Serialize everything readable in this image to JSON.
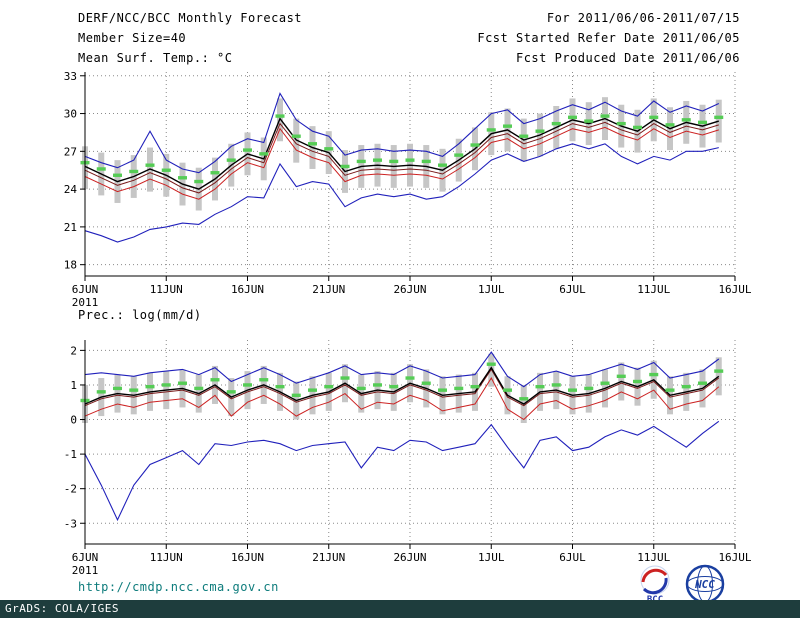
{
  "header": {
    "left": [
      "DERF/NCC/BCC Monthly Forecast",
      "Member Size=40",
      "Mean Surf. Temp.: °C"
    ],
    "right": [
      "For 2011/06/06-2011/07/15",
      "Fcst Started Refer Date 2011/06/05",
      "Fcst Produced Date 2011/06/06"
    ]
  },
  "panel2_label": "Prec.: log(mm/d)",
  "footer": {
    "url": "http://cmdp.ncc.cma.gov.cn",
    "grads": "GrADS: COLA/IGES"
  },
  "logos": {
    "bcc": "BCC",
    "ncc": "NCC"
  },
  "colors": {
    "url_teal": "#0e7c7c",
    "strip_bg": "#1e3d3d",
    "ensemble_blue": "#2020bb",
    "control_red": "#cc2222",
    "median_maroon": "#7a1a1a",
    "mean_black": "#000000",
    "clim_green": "#55cc55",
    "spread_gray": "#c6c6c6"
  },
  "chart_data": [
    {
      "type": "line",
      "title": "Mean Surf. Temp.: °C",
      "xlabel": "",
      "ylabel": "°C",
      "xlim": [
        0,
        40
      ],
      "ylim": [
        17.1,
        33.3
      ],
      "y_ticks": [
        18,
        21,
        24,
        27,
        30,
        33
      ],
      "x_ticks": [
        0,
        5,
        10,
        15,
        20,
        25,
        30,
        35,
        40
      ],
      "x_tick_labels": [
        "6JUN",
        "11JUN",
        "16JUN",
        "21JUN",
        "26JUN",
        "1JUL",
        "6JUL",
        "11JUL",
        "16JUL"
      ],
      "x_sub_label": "2011",
      "grid": true,
      "series": [
        {
          "name": "ensemble-max",
          "color": "#2020bb",
          "width": 1.1,
          "values": [
            26.6,
            26.1,
            25.7,
            26.3,
            28.6,
            26.3,
            25.6,
            25.3,
            26.2,
            27.4,
            28.0,
            27.7,
            31.6,
            29.5,
            28.6,
            28.2,
            26.7,
            27.1,
            27.2,
            27.0,
            27.1,
            27.0,
            26.6,
            27.6,
            28.8,
            30.0,
            30.3,
            29.2,
            29.6,
            30.2,
            30.7,
            30.3,
            30.9,
            30.2,
            29.8,
            31.0,
            30.1,
            30.6,
            30.2,
            30.8
          ]
        },
        {
          "name": "ensemble-min",
          "color": "#2020bb",
          "width": 1.1,
          "values": [
            20.7,
            20.3,
            19.8,
            20.2,
            20.8,
            21.0,
            21.3,
            21.2,
            22.0,
            22.6,
            23.4,
            23.3,
            26.0,
            24.2,
            24.6,
            24.4,
            22.6,
            23.3,
            23.6,
            23.4,
            23.6,
            23.2,
            23.4,
            24.2,
            25.2,
            26.3,
            26.8,
            26.2,
            26.6,
            27.2,
            27.6,
            27.2,
            27.6,
            26.6,
            26.0,
            26.6,
            26.3,
            27.0,
            27.0,
            27.3
          ]
        },
        {
          "name": "control-run",
          "color": "#cc2222",
          "width": 1,
          "values": [
            25.0,
            24.4,
            23.8,
            24.2,
            24.8,
            24.3,
            23.6,
            23.2,
            24.0,
            25.2,
            26.1,
            25.7,
            28.8,
            27.1,
            26.5,
            26.1,
            24.6,
            25.1,
            25.2,
            25.1,
            25.2,
            25.1,
            24.8,
            25.6,
            26.5,
            27.7,
            28.0,
            27.2,
            27.6,
            28.2,
            28.8,
            28.5,
            28.9,
            28.3,
            27.9,
            28.8,
            28.1,
            28.6,
            28.3,
            28.7
          ]
        },
        {
          "name": "ensemble-median",
          "color": "#7a1a1a",
          "width": 1,
          "values": [
            25.5,
            24.9,
            24.3,
            24.7,
            25.3,
            24.8,
            24.1,
            23.7,
            24.5,
            25.6,
            26.5,
            26.1,
            29.2,
            27.6,
            27.0,
            26.6,
            25.1,
            25.5,
            25.6,
            25.5,
            25.6,
            25.5,
            25.2,
            26.0,
            26.9,
            28.1,
            28.4,
            27.6,
            28.0,
            28.6,
            29.2,
            28.9,
            29.3,
            28.7,
            28.3,
            29.2,
            28.5,
            29.0,
            28.7,
            29.1
          ]
        },
        {
          "name": "ensemble-mean",
          "color": "#000000",
          "width": 1.4,
          "values": [
            25.8,
            25.2,
            24.6,
            25.0,
            25.6,
            25.1,
            24.4,
            24.0,
            24.8,
            25.9,
            26.8,
            26.4,
            29.6,
            27.9,
            27.3,
            26.9,
            25.4,
            25.8,
            25.9,
            25.8,
            25.9,
            25.8,
            25.5,
            26.3,
            27.2,
            28.4,
            28.7,
            27.9,
            28.3,
            28.9,
            29.5,
            29.2,
            29.6,
            29.0,
            28.6,
            29.5,
            28.8,
            29.3,
            29.0,
            29.4
          ]
        }
      ],
      "bars": {
        "name": "ensemble-spread",
        "color": "#c6c6c6",
        "low": [
          24.0,
          23.5,
          22.9,
          23.3,
          23.8,
          23.4,
          22.7,
          22.3,
          23.1,
          24.2,
          25.1,
          24.7,
          27.8,
          26.1,
          25.6,
          25.2,
          23.7,
          24.1,
          24.2,
          24.1,
          24.2,
          24.1,
          23.8,
          24.6,
          25.5,
          26.7,
          27.0,
          26.2,
          26.6,
          27.2,
          27.8,
          27.5,
          27.9,
          27.3,
          26.9,
          27.8,
          27.1,
          27.6,
          27.3,
          27.7
        ],
        "high": [
          27.4,
          26.9,
          26.3,
          26.7,
          27.3,
          26.8,
          26.1,
          25.7,
          26.5,
          27.6,
          28.5,
          28.1,
          31.2,
          29.6,
          29.0,
          28.6,
          27.1,
          27.5,
          27.6,
          27.5,
          27.6,
          27.5,
          27.2,
          28.0,
          28.9,
          30.1,
          30.4,
          29.6,
          30.0,
          30.6,
          31.2,
          30.9,
          31.3,
          30.7,
          30.3,
          31.2,
          30.5,
          31.0,
          30.7,
          31.1
        ]
      },
      "dashes": {
        "name": "climatology",
        "color": "#55cc55",
        "values": [
          26.1,
          25.6,
          25.1,
          25.4,
          25.9,
          25.5,
          24.9,
          24.6,
          25.3,
          26.3,
          27.1,
          26.8,
          29.8,
          28.2,
          27.6,
          27.2,
          25.8,
          26.2,
          26.3,
          26.2,
          26.3,
          26.2,
          25.9,
          26.7,
          27.5,
          28.7,
          29.0,
          28.2,
          28.6,
          29.2,
          29.7,
          29.4,
          29.8,
          29.2,
          28.9,
          29.7,
          29.1,
          29.5,
          29.3,
          29.7
        ]
      }
    },
    {
      "type": "line",
      "title": "Prec.: log(mm/d)",
      "xlabel": "",
      "ylabel": "log(mm/d)",
      "xlim": [
        0,
        40
      ],
      "ylim": [
        -3.6,
        2.3
      ],
      "y_ticks": [
        -3,
        -2,
        -1,
        0,
        1,
        2
      ],
      "x_ticks": [
        0,
        5,
        10,
        15,
        20,
        25,
        30,
        35,
        40
      ],
      "x_tick_labels": [
        "6JUN",
        "11JUN",
        "16JUN",
        "21JUN",
        "26JUN",
        "1JUL",
        "6JUL",
        "11JUL",
        "16JUL"
      ],
      "x_sub_label": "2011",
      "grid": true,
      "series": [
        {
          "name": "ensemble-max",
          "color": "#2020bb",
          "width": 1.1,
          "values": [
            1.3,
            1.35,
            1.3,
            1.25,
            1.35,
            1.4,
            1.45,
            1.3,
            1.5,
            1.1,
            1.3,
            1.5,
            1.3,
            1.05,
            1.2,
            1.35,
            1.55,
            1.3,
            1.35,
            1.3,
            1.55,
            1.4,
            1.2,
            1.25,
            1.3,
            1.95,
            1.25,
            0.95,
            1.3,
            1.4,
            1.25,
            1.3,
            1.45,
            1.6,
            1.45,
            1.65,
            1.2,
            1.3,
            1.4,
            1.75
          ]
        },
        {
          "name": "ensemble-min",
          "color": "#2020bb",
          "width": 1.1,
          "values": [
            -1.0,
            -1.9,
            -2.9,
            -1.9,
            -1.3,
            -1.1,
            -0.9,
            -1.3,
            -0.7,
            -0.75,
            -0.65,
            -0.6,
            -0.7,
            -0.9,
            -0.75,
            -0.7,
            -0.65,
            -1.4,
            -0.8,
            -0.9,
            -0.6,
            -0.65,
            -0.9,
            -0.8,
            -0.7,
            -0.15,
            -0.8,
            -1.4,
            -0.6,
            -0.5,
            -0.9,
            -0.8,
            -0.5,
            -0.3,
            -0.45,
            -0.2,
            -0.5,
            -0.8,
            -0.4,
            -0.05
          ]
        },
        {
          "name": "control-run",
          "color": "#cc2222",
          "width": 1,
          "values": [
            0.1,
            0.3,
            0.45,
            0.35,
            0.5,
            0.55,
            0.6,
            0.35,
            0.7,
            0.1,
            0.5,
            0.7,
            0.45,
            0.1,
            0.35,
            0.5,
            0.75,
            0.3,
            0.5,
            0.45,
            0.7,
            0.55,
            0.25,
            0.35,
            0.45,
            1.2,
            0.3,
            0.0,
            0.45,
            0.55,
            0.3,
            0.4,
            0.55,
            0.8,
            0.6,
            0.85,
            0.3,
            0.45,
            0.55,
            0.95
          ]
        },
        {
          "name": "ensemble-median",
          "color": "#7a1a1a",
          "width": 1,
          "values": [
            0.4,
            0.6,
            0.7,
            0.65,
            0.75,
            0.8,
            0.85,
            0.7,
            0.95,
            0.6,
            0.8,
            0.95,
            0.75,
            0.5,
            0.65,
            0.75,
            1.0,
            0.7,
            0.8,
            0.75,
            1.0,
            0.85,
            0.65,
            0.7,
            0.75,
            1.45,
            0.65,
            0.4,
            0.75,
            0.8,
            0.65,
            0.7,
            0.85,
            1.05,
            0.9,
            1.1,
            0.65,
            0.75,
            0.85,
            1.2
          ]
        },
        {
          "name": "ensemble-mean",
          "color": "#000000",
          "width": 1.4,
          "values": [
            0.45,
            0.65,
            0.75,
            0.7,
            0.8,
            0.85,
            0.9,
            0.75,
            1.0,
            0.65,
            0.85,
            1.0,
            0.8,
            0.55,
            0.7,
            0.8,
            1.05,
            0.75,
            0.85,
            0.8,
            1.05,
            0.9,
            0.7,
            0.75,
            0.8,
            1.5,
            0.7,
            0.45,
            0.8,
            0.85,
            0.7,
            0.75,
            0.9,
            1.1,
            0.95,
            1.15,
            0.7,
            0.8,
            0.9,
            1.25
          ]
        }
      ],
      "bars": {
        "name": "ensemble-spread",
        "color": "#c6c6c6",
        "low": [
          -0.1,
          0.1,
          0.2,
          0.15,
          0.25,
          0.3,
          0.35,
          0.2,
          0.45,
          0.1,
          0.3,
          0.45,
          0.25,
          0.0,
          0.15,
          0.25,
          0.5,
          0.2,
          0.3,
          0.25,
          0.5,
          0.35,
          0.15,
          0.2,
          0.25,
          0.95,
          0.15,
          -0.1,
          0.25,
          0.3,
          0.15,
          0.2,
          0.35,
          0.55,
          0.4,
          0.6,
          0.15,
          0.25,
          0.35,
          0.7
        ],
        "high": [
          1.0,
          1.2,
          1.3,
          1.25,
          1.35,
          1.4,
          1.45,
          1.3,
          1.55,
          1.2,
          1.4,
          1.55,
          1.35,
          1.1,
          1.25,
          1.35,
          1.6,
          1.3,
          1.4,
          1.35,
          1.6,
          1.45,
          1.25,
          1.3,
          1.35,
          1.9,
          1.25,
          1.0,
          1.35,
          1.4,
          1.25,
          1.3,
          1.45,
          1.65,
          1.5,
          1.7,
          1.25,
          1.35,
          1.45,
          1.8
        ]
      },
      "dashes": {
        "name": "climatology",
        "color": "#55cc55",
        "values": [
          0.55,
          0.8,
          0.9,
          0.85,
          0.95,
          1.0,
          1.05,
          0.9,
          1.15,
          0.8,
          1.0,
          1.15,
          0.95,
          0.7,
          0.85,
          0.95,
          1.2,
          0.9,
          1.0,
          0.95,
          1.2,
          1.05,
          0.85,
          0.9,
          0.95,
          1.6,
          0.85,
          0.6,
          0.95,
          1.0,
          0.85,
          0.9,
          1.05,
          1.25,
          1.1,
          1.3,
          0.85,
          0.95,
          1.05,
          1.4
        ]
      }
    }
  ]
}
